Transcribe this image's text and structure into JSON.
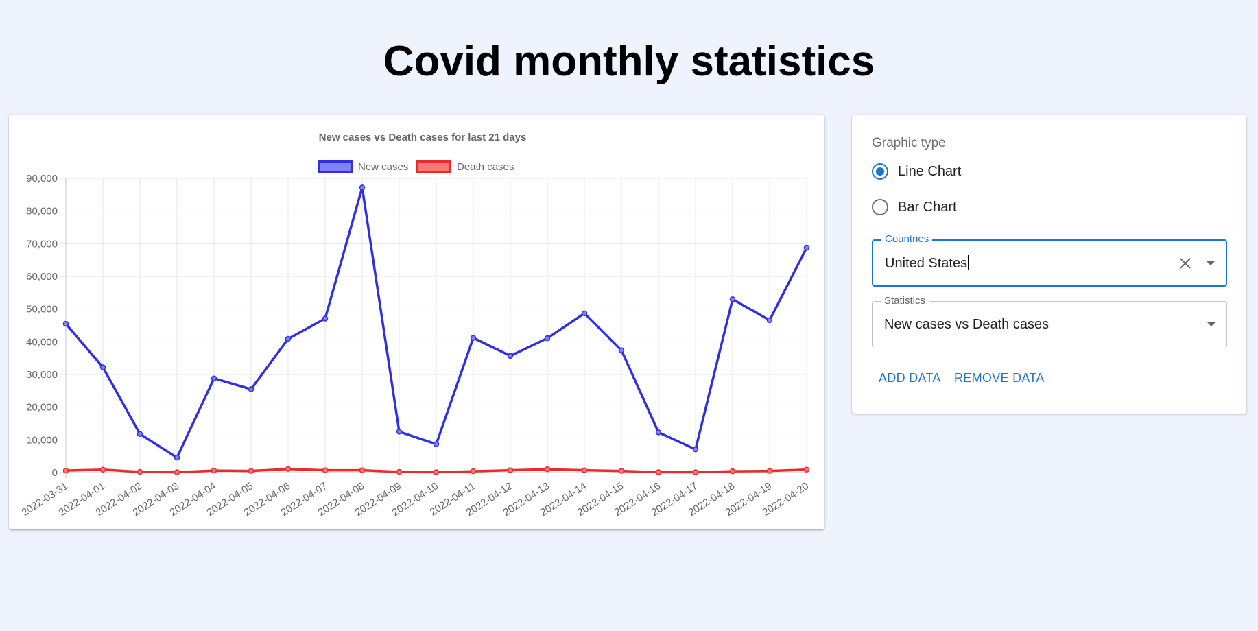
{
  "page": {
    "title": "Covid monthly statistics"
  },
  "controls": {
    "graphic_type_label": "Graphic type",
    "options": [
      {
        "label": "Line Chart",
        "checked": true
      },
      {
        "label": "Bar Chart",
        "checked": false
      }
    ],
    "countries": {
      "label": "Countries",
      "value": "United States"
    },
    "statistics": {
      "label": "Statistics",
      "value": "New cases vs Death cases"
    },
    "add_data_label": "ADD DATA",
    "remove_data_label": "REMOVE DATA"
  },
  "chart_data": {
    "type": "line",
    "title": "New cases vs Death cases for last 21 days",
    "categories": [
      "2022-03-31",
      "2022-04-01",
      "2022-04-02",
      "2022-04-03",
      "2022-04-04",
      "2022-04-05",
      "2022-04-06",
      "2022-04-07",
      "2022-04-08",
      "2022-04-09",
      "2022-04-10",
      "2022-04-11",
      "2022-04-12",
      "2022-04-13",
      "2022-04-14",
      "2022-04-15",
      "2022-04-16",
      "2022-04-17",
      "2022-04-18",
      "2022-04-19",
      "2022-04-20"
    ],
    "series": [
      {
        "name": "New cases",
        "color": "#3030e0",
        "fill": "#8080f8",
        "values": [
          45500,
          32200,
          11800,
          4600,
          28800,
          25500,
          40900,
          47100,
          87200,
          12500,
          8700,
          41200,
          35700,
          41100,
          48700,
          37400,
          12300,
          7100,
          53000,
          46600,
          68800
        ]
      },
      {
        "name": "Death cases",
        "color": "#e82c2c",
        "fill": "#f87878",
        "values": [
          600,
          900,
          200,
          100,
          600,
          500,
          1100,
          700,
          700,
          200,
          100,
          400,
          700,
          1000,
          700,
          500,
          100,
          100,
          400,
          500,
          900
        ]
      }
    ],
    "yticks": [
      "0",
      "10,000",
      "20,000",
      "30,000",
      "40,000",
      "50,000",
      "60,000",
      "70,000",
      "80,000",
      "90,000"
    ],
    "ylim": [
      0,
      90000
    ],
    "grid": true,
    "legend": "top"
  }
}
